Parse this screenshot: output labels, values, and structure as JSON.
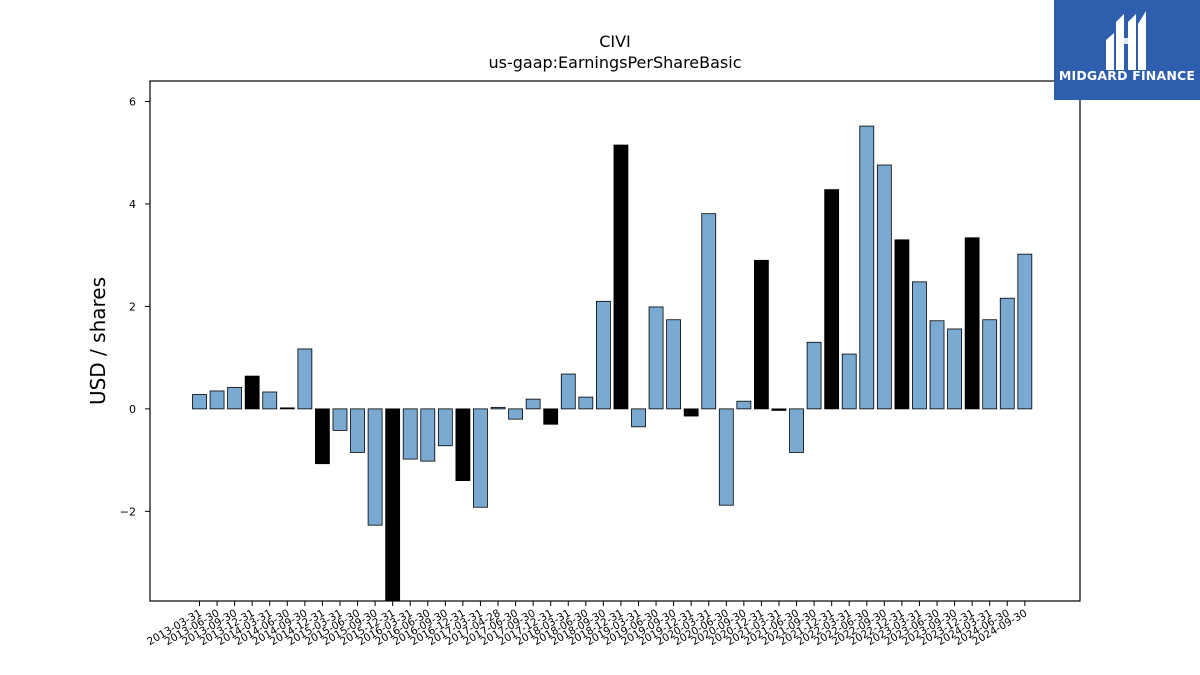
{
  "chart_data": {
    "type": "bar",
    "title": "CIVI",
    "subtitle": "us-gaap:EarningsPerShareBasic",
    "xlabel": "",
    "ylabel": "USD / shares",
    "ylim": [
      -3.75,
      6.4
    ],
    "yticks": [
      -2,
      0,
      2,
      4,
      6
    ],
    "ytick_labels": [
      "−2",
      "0",
      "2",
      "4",
      "6"
    ],
    "grid": false,
    "colors": {
      "quarterly": "#7aaad2",
      "annual": "#000000"
    },
    "categories": [
      "2013-03-31",
      "2013-06-30",
      "2013-09-30",
      "2013-12-31",
      "2014-03-31",
      "2014-06-30",
      "2014-09-30",
      "2014-12-31",
      "2015-03-31",
      "2015-06-30",
      "2015-09-30",
      "2015-12-31",
      "2016-03-31",
      "2016-06-30",
      "2016-09-30",
      "2016-12-31",
      "2017-03-31",
      "2017-04-28",
      "2017-06-30",
      "2017-09-30",
      "2017-12-31",
      "2018-03-31",
      "2018-06-30",
      "2018-09-30",
      "2018-12-31",
      "2019-03-31",
      "2019-06-30",
      "2019-09-30",
      "2019-12-31",
      "2020-03-31",
      "2020-06-30",
      "2020-09-30",
      "2020-12-31",
      "2021-03-31",
      "2021-06-30",
      "2021-09-30",
      "2021-12-31",
      "2022-03-31",
      "2022-06-30",
      "2022-09-30",
      "2022-12-31",
      "2023-03-31",
      "2023-06-30",
      "2023-09-30",
      "2023-12-31",
      "2024-03-31",
      "2024-06-30",
      "2024-09-30"
    ],
    "values": [
      0.28,
      0.35,
      0.42,
      0.64,
      0.33,
      0.02,
      1.17,
      -1.07,
      -0.42,
      -0.85,
      -2.27,
      -3.9,
      -0.98,
      -1.02,
      -0.72,
      -1.4,
      -1.92,
      0.03,
      -0.2,
      0.19,
      -0.3,
      0.68,
      0.23,
      2.1,
      5.15,
      -0.35,
      1.99,
      1.74,
      -0.14,
      3.81,
      -1.88,
      0.15,
      2.9,
      -0.03,
      -0.85,
      1.3,
      4.28,
      1.07,
      5.52,
      4.76,
      3.3,
      2.48,
      1.72,
      1.56,
      3.34,
      1.74,
      2.16,
      3.02
    ],
    "annual": [
      false,
      false,
      false,
      true,
      false,
      true,
      false,
      true,
      false,
      false,
      false,
      true,
      false,
      false,
      false,
      true,
      false,
      false,
      false,
      false,
      true,
      false,
      false,
      false,
      true,
      false,
      false,
      false,
      true,
      false,
      false,
      false,
      true,
      true,
      false,
      false,
      true,
      false,
      false,
      false,
      true,
      false,
      false,
      false,
      true,
      false,
      false,
      false
    ]
  },
  "logo": {
    "text": "MIDGARD FINANCE"
  }
}
